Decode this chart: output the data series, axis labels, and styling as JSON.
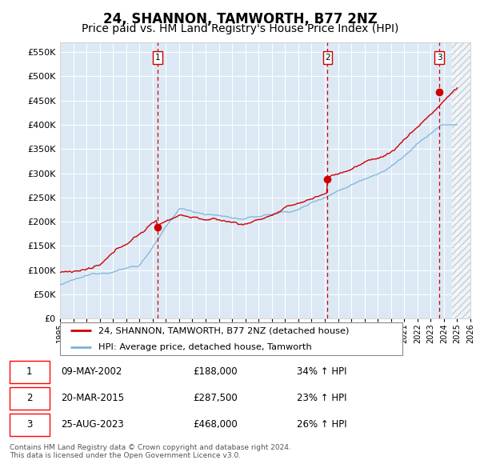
{
  "title": "24, SHANNON, TAMWORTH, B77 2NZ",
  "subtitle": "Price paid vs. HM Land Registry's House Price Index (HPI)",
  "ylim": [
    0,
    570000
  ],
  "yticks": [
    0,
    50000,
    100000,
    150000,
    200000,
    250000,
    300000,
    350000,
    400000,
    450000,
    500000,
    550000
  ],
  "ytick_labels": [
    "£0",
    "£50K",
    "£100K",
    "£150K",
    "£200K",
    "£250K",
    "£300K",
    "£350K",
    "£400K",
    "£450K",
    "£500K",
    "£550K"
  ],
  "background_color": "#dce9f5",
  "grid_color": "#ffffff",
  "line_color_hpi": "#7ab4d8",
  "line_color_price": "#cc0000",
  "sale_marker_color": "#cc0000",
  "sale_dates": [
    2002.35,
    2015.21,
    2023.65
  ],
  "sale_prices": [
    188000,
    287500,
    468000
  ],
  "sale_labels": [
    "1",
    "2",
    "3"
  ],
  "sale_date_strs": [
    "09-MAY-2002",
    "20-MAR-2015",
    "25-AUG-2023"
  ],
  "sale_price_strs": [
    "£188,000",
    "£287,500",
    "£468,000"
  ],
  "sale_hpi_strs": [
    "34% ↑ HPI",
    "23% ↑ HPI",
    "26% ↑ HPI"
  ],
  "legend_price_label": "24, SHANNON, TAMWORTH, B77 2NZ (detached house)",
  "legend_hpi_label": "HPI: Average price, detached house, Tamworth",
  "footer": "Contains HM Land Registry data © Crown copyright and database right 2024.\nThis data is licensed under the Open Government Licence v3.0.",
  "xmin": 1995,
  "xmax": 2026,
  "hatch_start": 2024.58,
  "title_fontsize": 12,
  "subtitle_fontsize": 10
}
